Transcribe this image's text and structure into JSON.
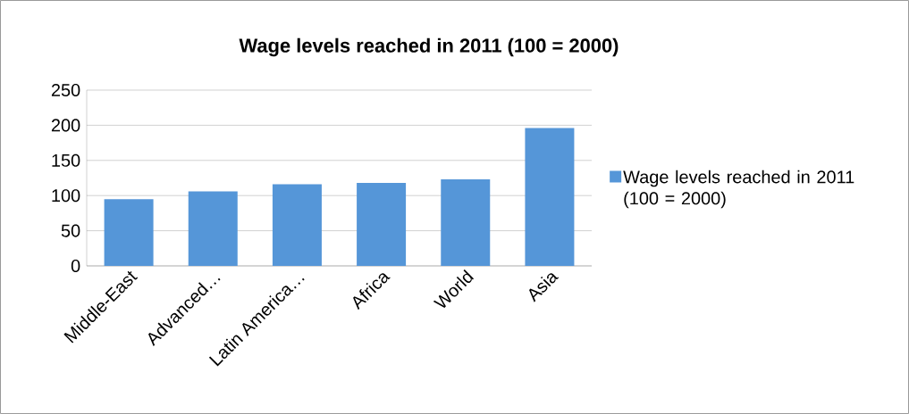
{
  "chart_data": {
    "type": "bar",
    "title": "Wage levels reached in 2011 (100 = 2000)",
    "categories": [
      "Middle-East",
      "Advanced…",
      "Latin America…",
      "Africa",
      "World",
      "Asia"
    ],
    "series": [
      {
        "name": "Wage levels reached in 2011 (100 = 2000)",
        "color": "#5596d8",
        "values": [
          95,
          106,
          116,
          118,
          123,
          196
        ]
      }
    ],
    "ylim": [
      0,
      250
    ],
    "yticks": [
      0,
      50,
      100,
      150,
      200,
      250
    ],
    "grid": "y",
    "legend": "right"
  }
}
